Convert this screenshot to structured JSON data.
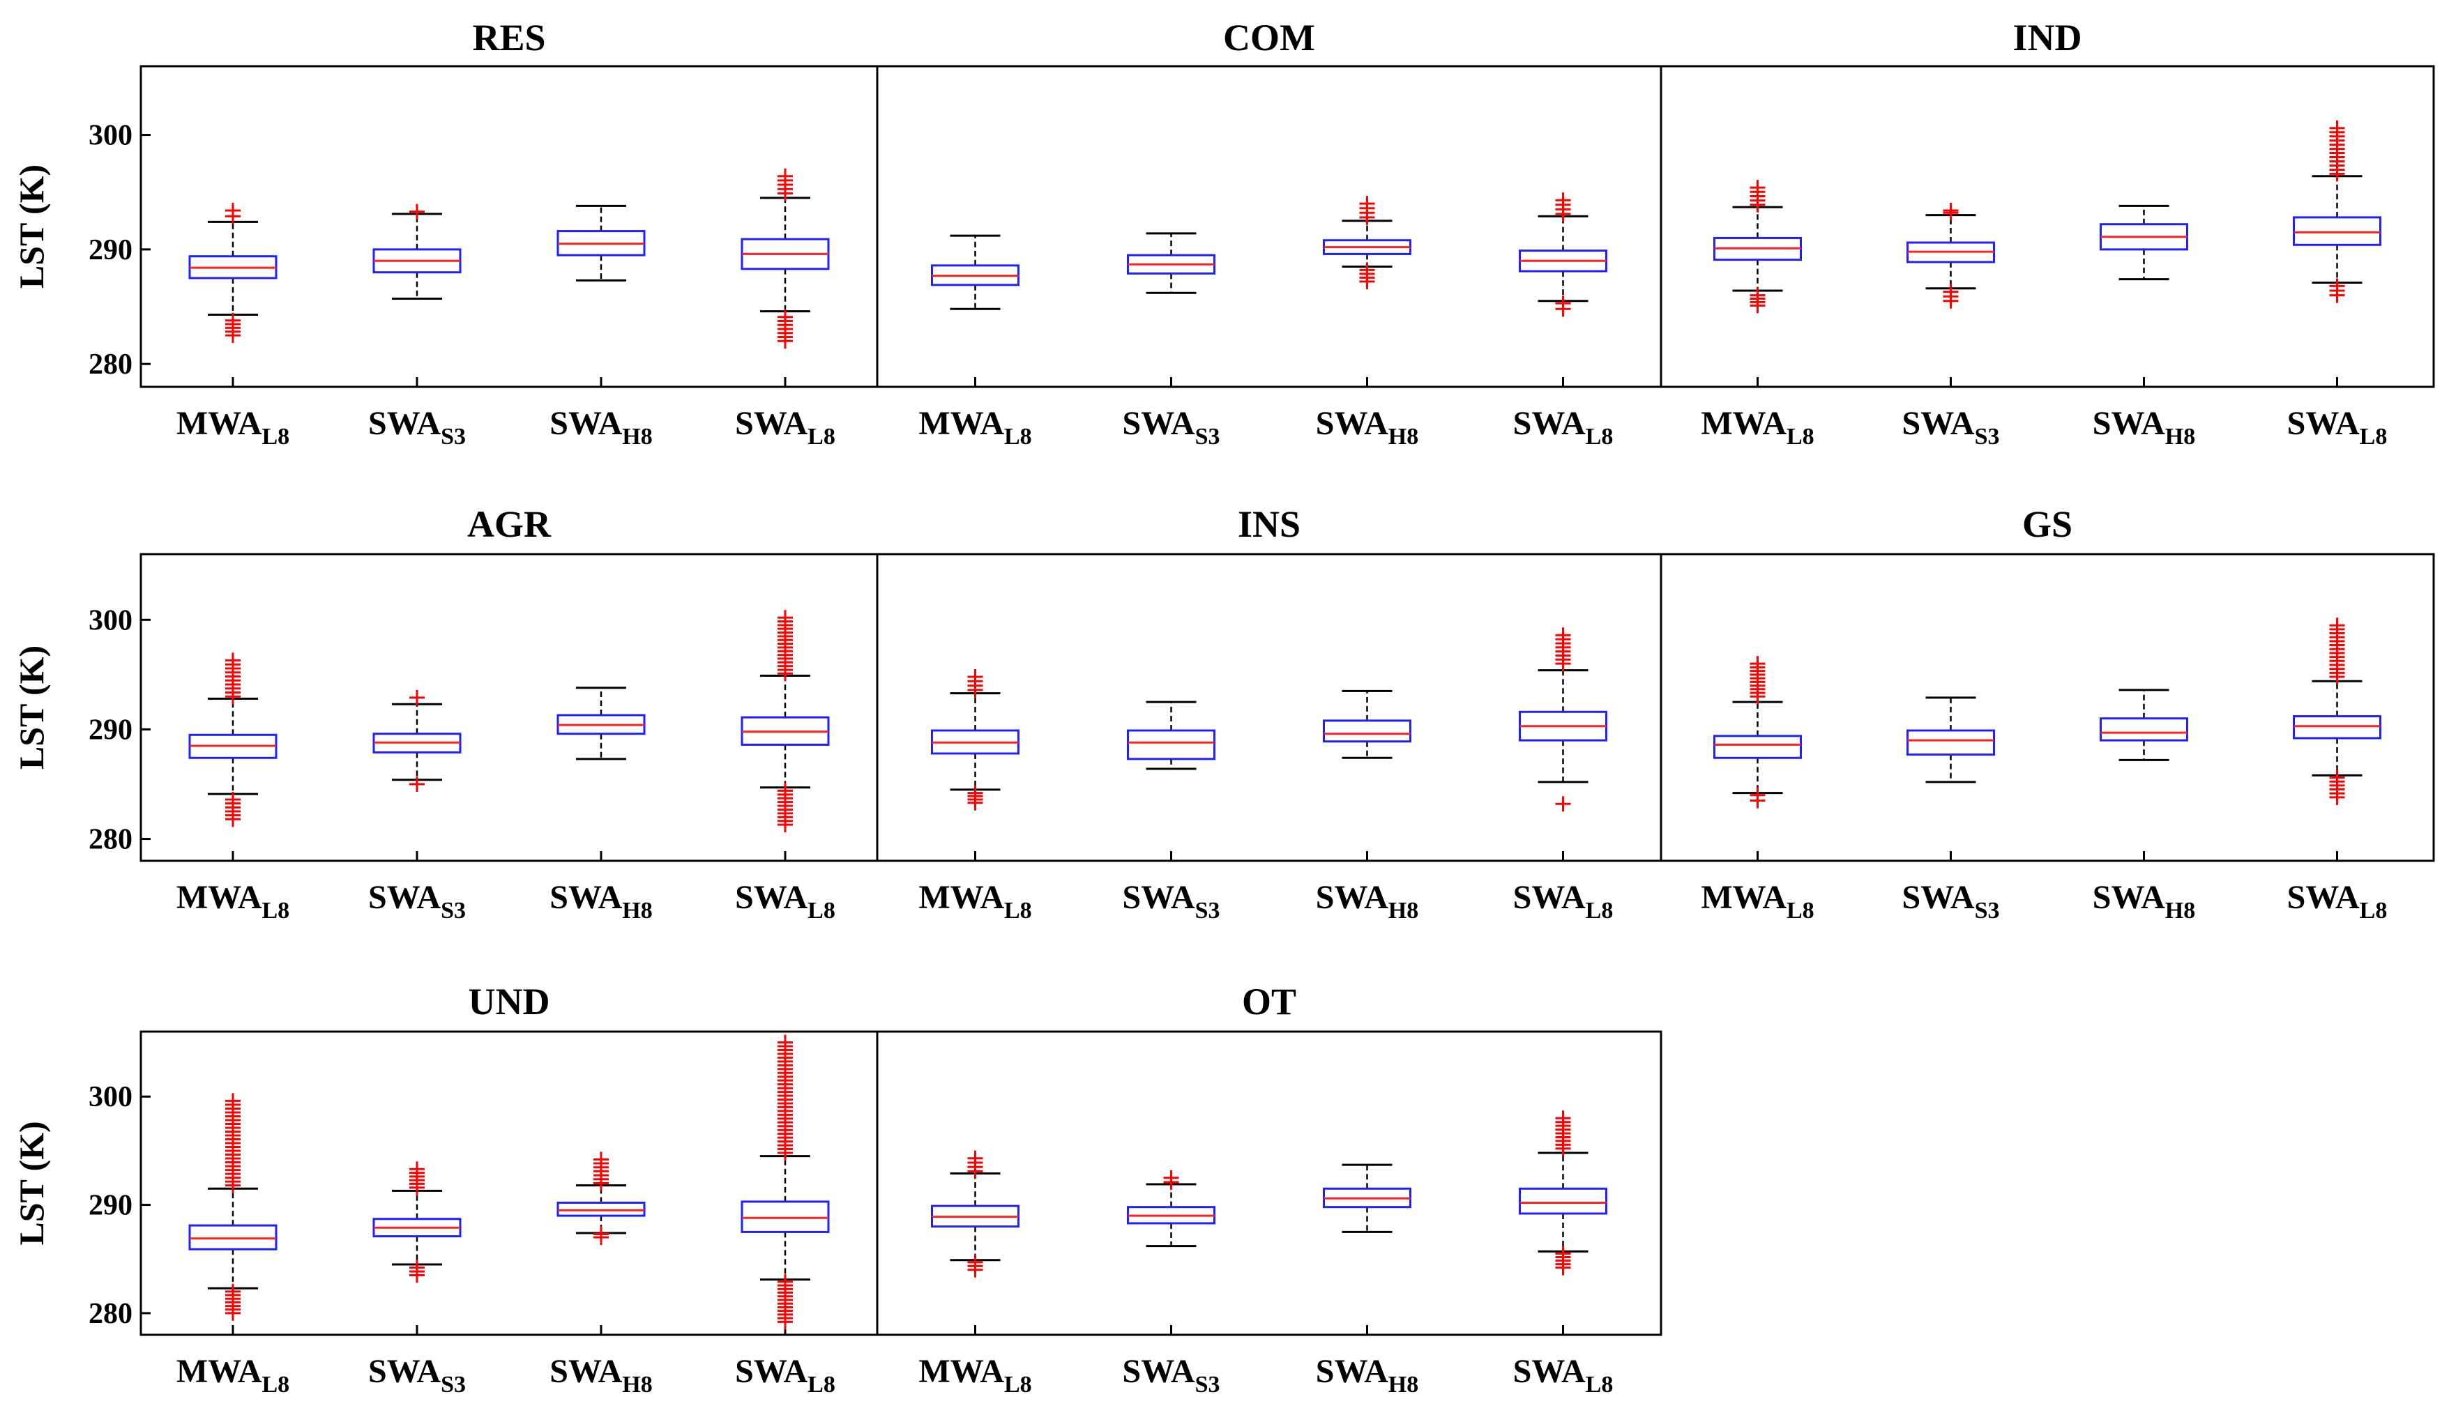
{
  "chart_data": {
    "type": "box",
    "ylabel": "LST (K)",
    "ylim": [
      278,
      306
    ],
    "yticks": [
      280,
      290,
      300
    ],
    "categories": [
      {
        "base": "MWA",
        "sub": "L8"
      },
      {
        "base": "SWA",
        "sub": "S3"
      },
      {
        "base": "SWA",
        "sub": "H8"
      },
      {
        "base": "SWA",
        "sub": "L8"
      }
    ],
    "colors": {
      "box": "#2020ff",
      "median": "#ff2020",
      "outlier": "#ff0000",
      "whisker": "#000000",
      "frame": "#000000"
    },
    "panels": [
      {
        "title": "RES",
        "boxes": [
          {
            "q1": 287.5,
            "median": 288.4,
            "q3": 289.4,
            "wlo": 284.3,
            "whi": 292.4,
            "out_lo": [
              282.5,
              283.8
            ],
            "out_hi": [
              292.9,
              293.4
            ]
          },
          {
            "q1": 288.0,
            "median": 289.0,
            "q3": 290.0,
            "wlo": 285.7,
            "whi": 293.1,
            "out_lo": [],
            "out_hi": [
              293.3
            ]
          },
          {
            "q1": 289.5,
            "median": 290.5,
            "q3": 291.6,
            "wlo": 287.3,
            "whi": 293.8,
            "out_lo": [],
            "out_hi": []
          },
          {
            "q1": 288.3,
            "median": 289.6,
            "q3": 290.9,
            "wlo": 284.6,
            "whi": 294.5,
            "out_lo": [
              282.0,
              284.1
            ],
            "out_hi": [
              294.9,
              296.4
            ]
          }
        ]
      },
      {
        "title": "COM",
        "boxes": [
          {
            "q1": 286.9,
            "median": 287.7,
            "q3": 288.6,
            "wlo": 284.8,
            "whi": 291.2,
            "out_lo": [],
            "out_hi": []
          },
          {
            "q1": 287.9,
            "median": 288.7,
            "q3": 289.5,
            "wlo": 286.2,
            "whi": 291.4,
            "out_lo": [],
            "out_hi": []
          },
          {
            "q1": 289.6,
            "median": 290.2,
            "q3": 290.8,
            "wlo": 288.5,
            "whi": 292.5,
            "out_lo": [
              287.2,
              288.2
            ],
            "out_hi": [
              292.8,
              294.0
            ]
          },
          {
            "q1": 288.1,
            "median": 289.0,
            "q3": 289.9,
            "wlo": 285.5,
            "whi": 292.9,
            "out_lo": [
              284.8,
              285.3
            ],
            "out_hi": [
              293.1,
              294.3
            ]
          }
        ]
      },
      {
        "title": "IND",
        "boxes": [
          {
            "q1": 289.1,
            "median": 290.1,
            "q3": 291.0,
            "wlo": 286.4,
            "whi": 293.7,
            "out_lo": [
              285.1,
              286.0
            ],
            "out_hi": [
              293.9,
              295.4
            ]
          },
          {
            "q1": 288.9,
            "median": 289.8,
            "q3": 290.6,
            "wlo": 286.6,
            "whi": 293.0,
            "out_lo": [
              285.5,
              286.3
            ],
            "out_hi": [
              293.2,
              293.4
            ]
          },
          {
            "q1": 290.0,
            "median": 291.1,
            "q3": 292.2,
            "wlo": 287.4,
            "whi": 293.8,
            "out_lo": [],
            "out_hi": []
          },
          {
            "q1": 290.4,
            "median": 291.5,
            "q3": 292.8,
            "wlo": 287.1,
            "whi": 296.4,
            "out_lo": [
              286.0,
              286.8
            ],
            "out_hi": [
              296.6,
              300.6
            ]
          }
        ]
      },
      {
        "title": "AGR",
        "boxes": [
          {
            "q1": 287.4,
            "median": 288.5,
            "q3": 289.5,
            "wlo": 284.1,
            "whi": 292.8,
            "out_lo": [
              281.8,
              283.6
            ],
            "out_hi": [
              293.0,
              296.3
            ]
          },
          {
            "q1": 287.9,
            "median": 288.8,
            "q3": 289.6,
            "wlo": 285.4,
            "whi": 292.3,
            "out_lo": [
              285.0
            ],
            "out_hi": [
              292.9
            ]
          },
          {
            "q1": 289.6,
            "median": 290.4,
            "q3": 291.3,
            "wlo": 287.3,
            "whi": 293.8,
            "out_lo": [],
            "out_hi": []
          },
          {
            "q1": 288.6,
            "median": 289.8,
            "q3": 291.1,
            "wlo": 284.7,
            "whi": 294.9,
            "out_lo": [
              281.3,
              284.4
            ],
            "out_hi": [
              295.1,
              300.2
            ]
          }
        ]
      },
      {
        "title": "INS",
        "boxes": [
          {
            "q1": 287.8,
            "median": 288.8,
            "q3": 289.9,
            "wlo": 284.5,
            "whi": 293.3,
            "out_lo": [
              283.3,
              284.2
            ],
            "out_hi": [
              293.6,
              294.8
            ]
          },
          {
            "q1": 287.3,
            "median": 288.8,
            "q3": 289.9,
            "wlo": 286.4,
            "whi": 292.5,
            "out_lo": [],
            "out_hi": []
          },
          {
            "q1": 288.9,
            "median": 289.6,
            "q3": 290.8,
            "wlo": 287.4,
            "whi": 293.5,
            "out_lo": [],
            "out_hi": []
          },
          {
            "q1": 289.0,
            "median": 290.3,
            "q3": 291.6,
            "wlo": 285.2,
            "whi": 295.4,
            "out_lo": [
              283.2
            ],
            "out_hi": [
              296.0,
              298.6
            ]
          }
        ]
      },
      {
        "title": "GS",
        "boxes": [
          {
            "q1": 287.4,
            "median": 288.6,
            "q3": 289.4,
            "wlo": 284.2,
            "whi": 292.5,
            "out_lo": [
              283.5,
              284.0
            ],
            "out_hi": [
              293.0,
              296.0
            ]
          },
          {
            "q1": 287.7,
            "median": 289.0,
            "q3": 289.9,
            "wlo": 285.2,
            "whi": 292.9,
            "out_lo": [],
            "out_hi": []
          },
          {
            "q1": 289.0,
            "median": 289.7,
            "q3": 291.0,
            "wlo": 287.2,
            "whi": 293.6,
            "out_lo": [],
            "out_hi": []
          },
          {
            "q1": 289.2,
            "median": 290.3,
            "q3": 291.2,
            "wlo": 285.8,
            "whi": 294.4,
            "out_lo": [
              283.8,
              285.6
            ],
            "out_hi": [
              294.8,
              299.5
            ]
          }
        ]
      },
      {
        "title": "UND",
        "boxes": [
          {
            "q1": 285.9,
            "median": 286.9,
            "q3": 288.1,
            "wlo": 282.3,
            "whi": 291.5,
            "out_lo": [
              280.0,
              282.0
            ],
            "out_hi": [
              291.8,
              299.6
            ]
          },
          {
            "q1": 287.1,
            "median": 287.9,
            "q3": 288.7,
            "wlo": 284.5,
            "whi": 291.3,
            "out_lo": [
              283.5,
              284.2
            ],
            "out_hi": [
              291.6,
              293.3
            ]
          },
          {
            "q1": 289.0,
            "median": 289.5,
            "q3": 290.2,
            "wlo": 287.4,
            "whi": 291.8,
            "out_lo": [
              287.0,
              287.3
            ],
            "out_hi": [
              292.0,
              294.2
            ]
          },
          {
            "q1": 287.5,
            "median": 288.8,
            "q3": 290.3,
            "wlo": 283.1,
            "whi": 294.5,
            "out_lo": [
              279.2,
              282.9
            ],
            "out_hi": [
              294.8,
              305.0
            ]
          }
        ]
      },
      {
        "title": "OT",
        "boxes": [
          {
            "q1": 288.0,
            "median": 288.9,
            "q3": 289.9,
            "wlo": 284.9,
            "whi": 292.9,
            "out_lo": [
              284.0,
              284.7
            ],
            "out_hi": [
              293.1,
              294.3
            ]
          },
          {
            "q1": 288.3,
            "median": 289.0,
            "q3": 289.8,
            "wlo": 286.2,
            "whi": 291.9,
            "out_lo": [],
            "out_hi": [
              292.1,
              292.5
            ]
          },
          {
            "q1": 289.8,
            "median": 290.6,
            "q3": 291.5,
            "wlo": 287.5,
            "whi": 293.7,
            "out_lo": [],
            "out_hi": []
          },
          {
            "q1": 289.2,
            "median": 290.2,
            "q3": 291.5,
            "wlo": 285.7,
            "whi": 294.8,
            "out_lo": [
              284.2,
              285.5
            ],
            "out_hi": [
              295.2,
              298.0
            ]
          }
        ]
      }
    ]
  }
}
